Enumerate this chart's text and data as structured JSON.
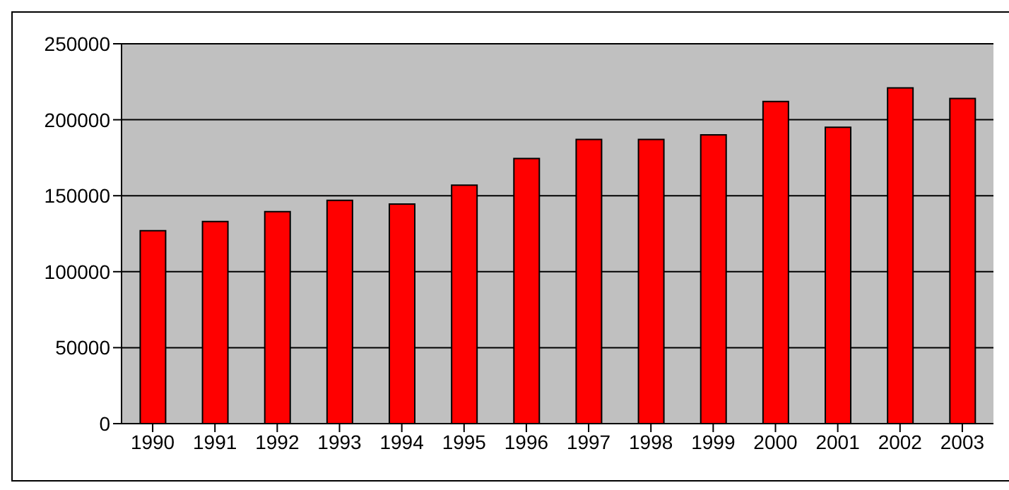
{
  "chart_data": {
    "type": "bar",
    "categories": [
      "1990",
      "1991",
      "1992",
      "1993",
      "1994",
      "1995",
      "1996",
      "1997",
      "1998",
      "1999",
      "2000",
      "2001",
      "2002",
      "2003"
    ],
    "values": [
      127000,
      133000,
      139500,
      147000,
      144500,
      157000,
      174500,
      187000,
      187000,
      190000,
      212000,
      195000,
      221000,
      214000
    ],
    "color": "#ff0000",
    "ylim": [
      0,
      250000
    ],
    "yticks": [
      0,
      50000,
      100000,
      150000,
      200000,
      250000
    ],
    "grid": "y"
  }
}
